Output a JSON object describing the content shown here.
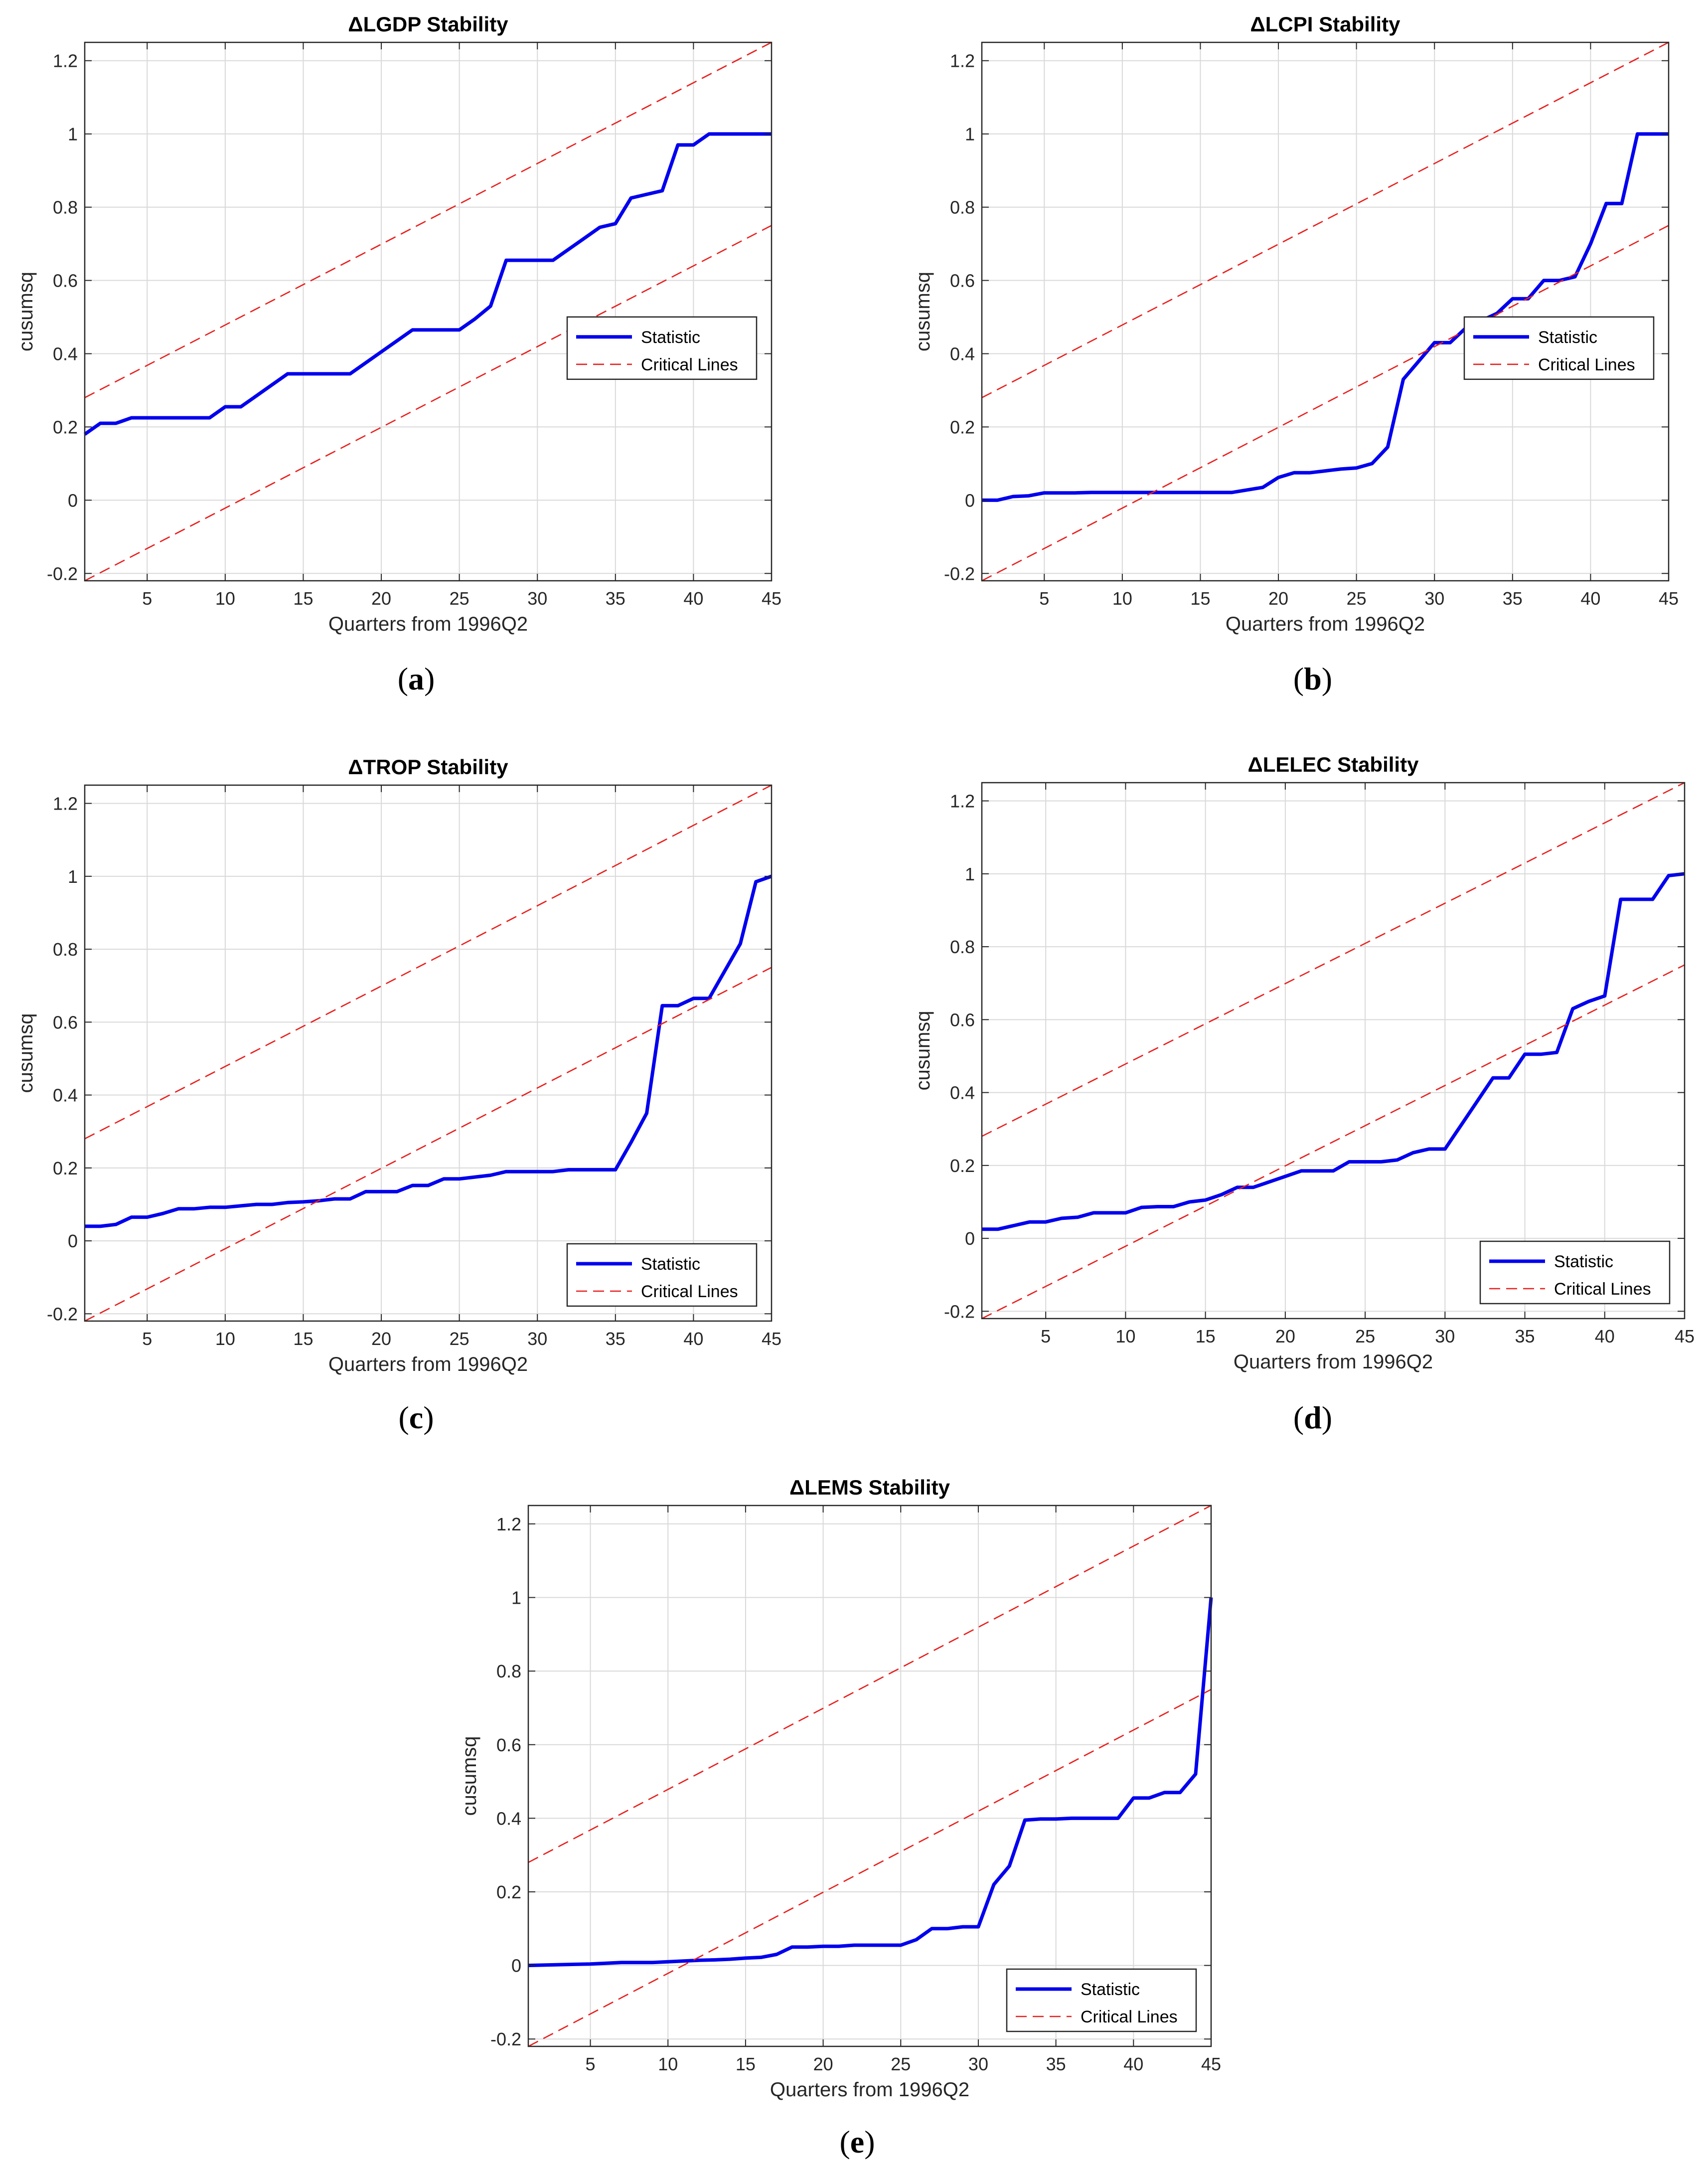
{
  "colors": {
    "statistic": "#0000ee",
    "critical": "#e8201e",
    "grid": "#d9d9d9",
    "axes": "#262626"
  },
  "chart_data": [
    {
      "type": "line",
      "panel_label": "a",
      "title": "ΔLGDP Stability",
      "xlabel": "Quarters from 1996Q2",
      "ylabel": "cusumsq",
      "xlim": [
        1,
        45
      ],
      "ylim": [
        -0.22,
        1.25
      ],
      "xticks": [
        5,
        10,
        15,
        20,
        25,
        30,
        35,
        40,
        45
      ],
      "yticks": [
        -0.2,
        0,
        0.2,
        0.4,
        0.6,
        0.8,
        1,
        1.2
      ],
      "grid": true,
      "legend_position": "middle-right",
      "series": [
        {
          "name": "Statistic",
          "style": "solid",
          "x": [
            1,
            2,
            3,
            4,
            5,
            6,
            7,
            8,
            9,
            10,
            11,
            12,
            13,
            14,
            15,
            16,
            17,
            18,
            19,
            20,
            21,
            22,
            23,
            24,
            25,
            26,
            27,
            28,
            29,
            30,
            31,
            32,
            33,
            34,
            35,
            36,
            37,
            38,
            39,
            40,
            41,
            42,
            43,
            44,
            45
          ],
          "y": [
            0.18,
            0.21,
            0.21,
            0.225,
            0.225,
            0.225,
            0.225,
            0.225,
            0.225,
            0.255,
            0.255,
            0.285,
            0.315,
            0.345,
            0.345,
            0.345,
            0.345,
            0.345,
            0.375,
            0.405,
            0.435,
            0.465,
            0.465,
            0.465,
            0.465,
            0.495,
            0.53,
            0.655,
            0.655,
            0.655,
            0.655,
            0.685,
            0.715,
            0.745,
            0.755,
            0.825,
            0.835,
            0.845,
            0.97,
            0.97,
            1.0,
            1.0,
            1.0,
            1.0,
            1.0
          ]
        },
        {
          "name": "Critical Lines",
          "style": "dashed",
          "x": [
            1,
            45
          ],
          "y": [
            0.28,
            1.25
          ]
        },
        {
          "name": "",
          "style": "dashed",
          "x": [
            1,
            45
          ],
          "y": [
            -0.22,
            0.75
          ]
        }
      ]
    },
    {
      "type": "line",
      "panel_label": "b",
      "title": "ΔLCPI Stability",
      "xlabel": "Quarters from 1996Q2",
      "ylabel": "cusumsq",
      "xlim": [
        1,
        45
      ],
      "ylim": [
        -0.22,
        1.25
      ],
      "xticks": [
        5,
        10,
        15,
        20,
        25,
        30,
        35,
        40,
        45
      ],
      "yticks": [
        -0.2,
        0,
        0.2,
        0.4,
        0.6,
        0.8,
        1,
        1.2
      ],
      "grid": true,
      "legend_position": "middle-right",
      "series": [
        {
          "name": "Statistic",
          "style": "solid",
          "x": [
            1,
            2,
            3,
            4,
            5,
            6,
            7,
            8,
            9,
            10,
            11,
            12,
            13,
            14,
            15,
            16,
            17,
            18,
            19,
            20,
            21,
            22,
            23,
            24,
            25,
            26,
            27,
            28,
            29,
            30,
            31,
            32,
            33,
            34,
            35,
            36,
            37,
            38,
            39,
            40,
            41,
            42,
            43,
            44,
            45
          ],
          "y": [
            0.0,
            0.0,
            0.01,
            0.012,
            0.02,
            0.02,
            0.02,
            0.021,
            0.021,
            0.021,
            0.021,
            0.021,
            0.021,
            0.021,
            0.021,
            0.021,
            0.021,
            0.028,
            0.035,
            0.062,
            0.075,
            0.075,
            0.08,
            0.085,
            0.088,
            0.1,
            0.145,
            0.33,
            0.38,
            0.43,
            0.43,
            0.47,
            0.49,
            0.51,
            0.55,
            0.55,
            0.6,
            0.6,
            0.61,
            0.7,
            0.81,
            0.81,
            1.0,
            1.0,
            1.0
          ]
        },
        {
          "name": "Critical Lines",
          "style": "dashed",
          "x": [
            1,
            45
          ],
          "y": [
            0.28,
            1.25
          ]
        },
        {
          "name": "",
          "style": "dashed",
          "x": [
            1,
            45
          ],
          "y": [
            -0.22,
            0.75
          ]
        }
      ]
    },
    {
      "type": "line",
      "panel_label": "c",
      "title": "ΔTROP Stability",
      "xlabel": "Quarters from 1996Q2",
      "ylabel": "cusumsq",
      "xlim": [
        1,
        45
      ],
      "ylim": [
        -0.22,
        1.25
      ],
      "xticks": [
        5,
        10,
        15,
        20,
        25,
        30,
        35,
        40,
        45
      ],
      "yticks": [
        -0.2,
        0,
        0.2,
        0.4,
        0.6,
        0.8,
        1,
        1.2
      ],
      "grid": true,
      "legend_position": "bottom-right",
      "series": [
        {
          "name": "Statistic",
          "style": "solid",
          "x": [
            1,
            2,
            3,
            4,
            5,
            6,
            7,
            8,
            9,
            10,
            11,
            12,
            13,
            14,
            15,
            16,
            17,
            18,
            19,
            20,
            21,
            22,
            23,
            24,
            25,
            26,
            27,
            28,
            29,
            30,
            31,
            32,
            33,
            34,
            35,
            36,
            37,
            38,
            39,
            40,
            41,
            42,
            43,
            44,
            45
          ],
          "y": [
            0.04,
            0.04,
            0.045,
            0.065,
            0.065,
            0.075,
            0.088,
            0.088,
            0.092,
            0.092,
            0.096,
            0.1,
            0.1,
            0.105,
            0.107,
            0.11,
            0.115,
            0.115,
            0.135,
            0.135,
            0.135,
            0.152,
            0.152,
            0.17,
            0.17,
            0.175,
            0.18,
            0.19,
            0.19,
            0.19,
            0.19,
            0.195,
            0.195,
            0.195,
            0.195,
            0.27,
            0.35,
            0.645,
            0.645,
            0.665,
            0.665,
            0.74,
            0.815,
            0.985,
            1.0
          ]
        },
        {
          "name": "Critical Lines",
          "style": "dashed",
          "x": [
            1,
            45
          ],
          "y": [
            0.28,
            1.25
          ]
        },
        {
          "name": "",
          "style": "dashed",
          "x": [
            1,
            45
          ],
          "y": [
            -0.22,
            0.75
          ]
        }
      ]
    },
    {
      "type": "line",
      "panel_label": "d",
      "title": "ΔLELEC Stability",
      "xlabel": "Quarters from 1996Q2",
      "ylabel": "cusumsq",
      "xlim": [
        1,
        45
      ],
      "ylim": [
        -0.22,
        1.25
      ],
      "xticks": [
        5,
        10,
        15,
        20,
        25,
        30,
        35,
        40,
        45
      ],
      "yticks": [
        -0.2,
        0,
        0.2,
        0.4,
        0.6,
        0.8,
        1,
        1.2
      ],
      "grid": true,
      "legend_position": "bottom-right",
      "series": [
        {
          "name": "Statistic",
          "style": "solid",
          "x": [
            1,
            2,
            3,
            4,
            5,
            6,
            7,
            8,
            9,
            10,
            11,
            12,
            13,
            14,
            15,
            16,
            17,
            18,
            19,
            20,
            21,
            22,
            23,
            24,
            25,
            26,
            27,
            28,
            29,
            30,
            31,
            32,
            33,
            34,
            35,
            36,
            37,
            38,
            39,
            40,
            41,
            42,
            43,
            44,
            45
          ],
          "y": [
            0.025,
            0.025,
            0.035,
            0.045,
            0.045,
            0.055,
            0.058,
            0.07,
            0.07,
            0.07,
            0.085,
            0.087,
            0.087,
            0.1,
            0.105,
            0.12,
            0.14,
            0.14,
            0.155,
            0.17,
            0.185,
            0.185,
            0.185,
            0.21,
            0.21,
            0.21,
            0.215,
            0.235,
            0.245,
            0.245,
            0.31,
            0.375,
            0.44,
            0.44,
            0.505,
            0.505,
            0.51,
            0.63,
            0.65,
            0.665,
            0.93,
            0.93,
            0.93,
            0.995,
            1.0
          ]
        },
        {
          "name": "Critical Lines",
          "style": "dashed",
          "x": [
            1,
            45
          ],
          "y": [
            0.28,
            1.25
          ]
        },
        {
          "name": "",
          "style": "dashed",
          "x": [
            1,
            45
          ],
          "y": [
            -0.22,
            0.75
          ]
        }
      ]
    },
    {
      "type": "line",
      "panel_label": "e",
      "title": "ΔLEMS Stability",
      "xlabel": "Quarters from 1996Q2",
      "ylabel": "cusumsq",
      "xlim": [
        1,
        45
      ],
      "ylim": [
        -0.22,
        1.25
      ],
      "xticks": [
        5,
        10,
        15,
        20,
        25,
        30,
        35,
        40,
        45
      ],
      "yticks": [
        -0.2,
        0,
        0.2,
        0.4,
        0.6,
        0.8,
        1,
        1.2
      ],
      "grid": true,
      "legend_position": "bottom-right",
      "series": [
        {
          "name": "Statistic",
          "style": "solid",
          "x": [
            1,
            2,
            3,
            4,
            5,
            6,
            7,
            8,
            9,
            10,
            11,
            12,
            13,
            14,
            15,
            16,
            17,
            18,
            19,
            20,
            21,
            22,
            23,
            24,
            25,
            26,
            27,
            28,
            29,
            30,
            31,
            32,
            33,
            34,
            35,
            36,
            37,
            38,
            39,
            40,
            41,
            42,
            43,
            44,
            45
          ],
          "y": [
            0.0,
            0.001,
            0.002,
            0.003,
            0.004,
            0.006,
            0.008,
            0.008,
            0.008,
            0.01,
            0.012,
            0.014,
            0.015,
            0.017,
            0.02,
            0.022,
            0.03,
            0.05,
            0.05,
            0.052,
            0.052,
            0.055,
            0.055,
            0.055,
            0.055,
            0.07,
            0.1,
            0.1,
            0.105,
            0.105,
            0.22,
            0.27,
            0.395,
            0.398,
            0.398,
            0.4,
            0.4,
            0.4,
            0.4,
            0.455,
            0.455,
            0.47,
            0.47,
            0.52,
            1.0
          ]
        },
        {
          "name": "Critical Lines",
          "style": "dashed",
          "x": [
            1,
            45
          ],
          "y": [
            0.28,
            1.25
          ]
        },
        {
          "name": "",
          "style": "dashed",
          "x": [
            1,
            45
          ],
          "y": [
            -0.22,
            0.75
          ]
        }
      ]
    }
  ]
}
